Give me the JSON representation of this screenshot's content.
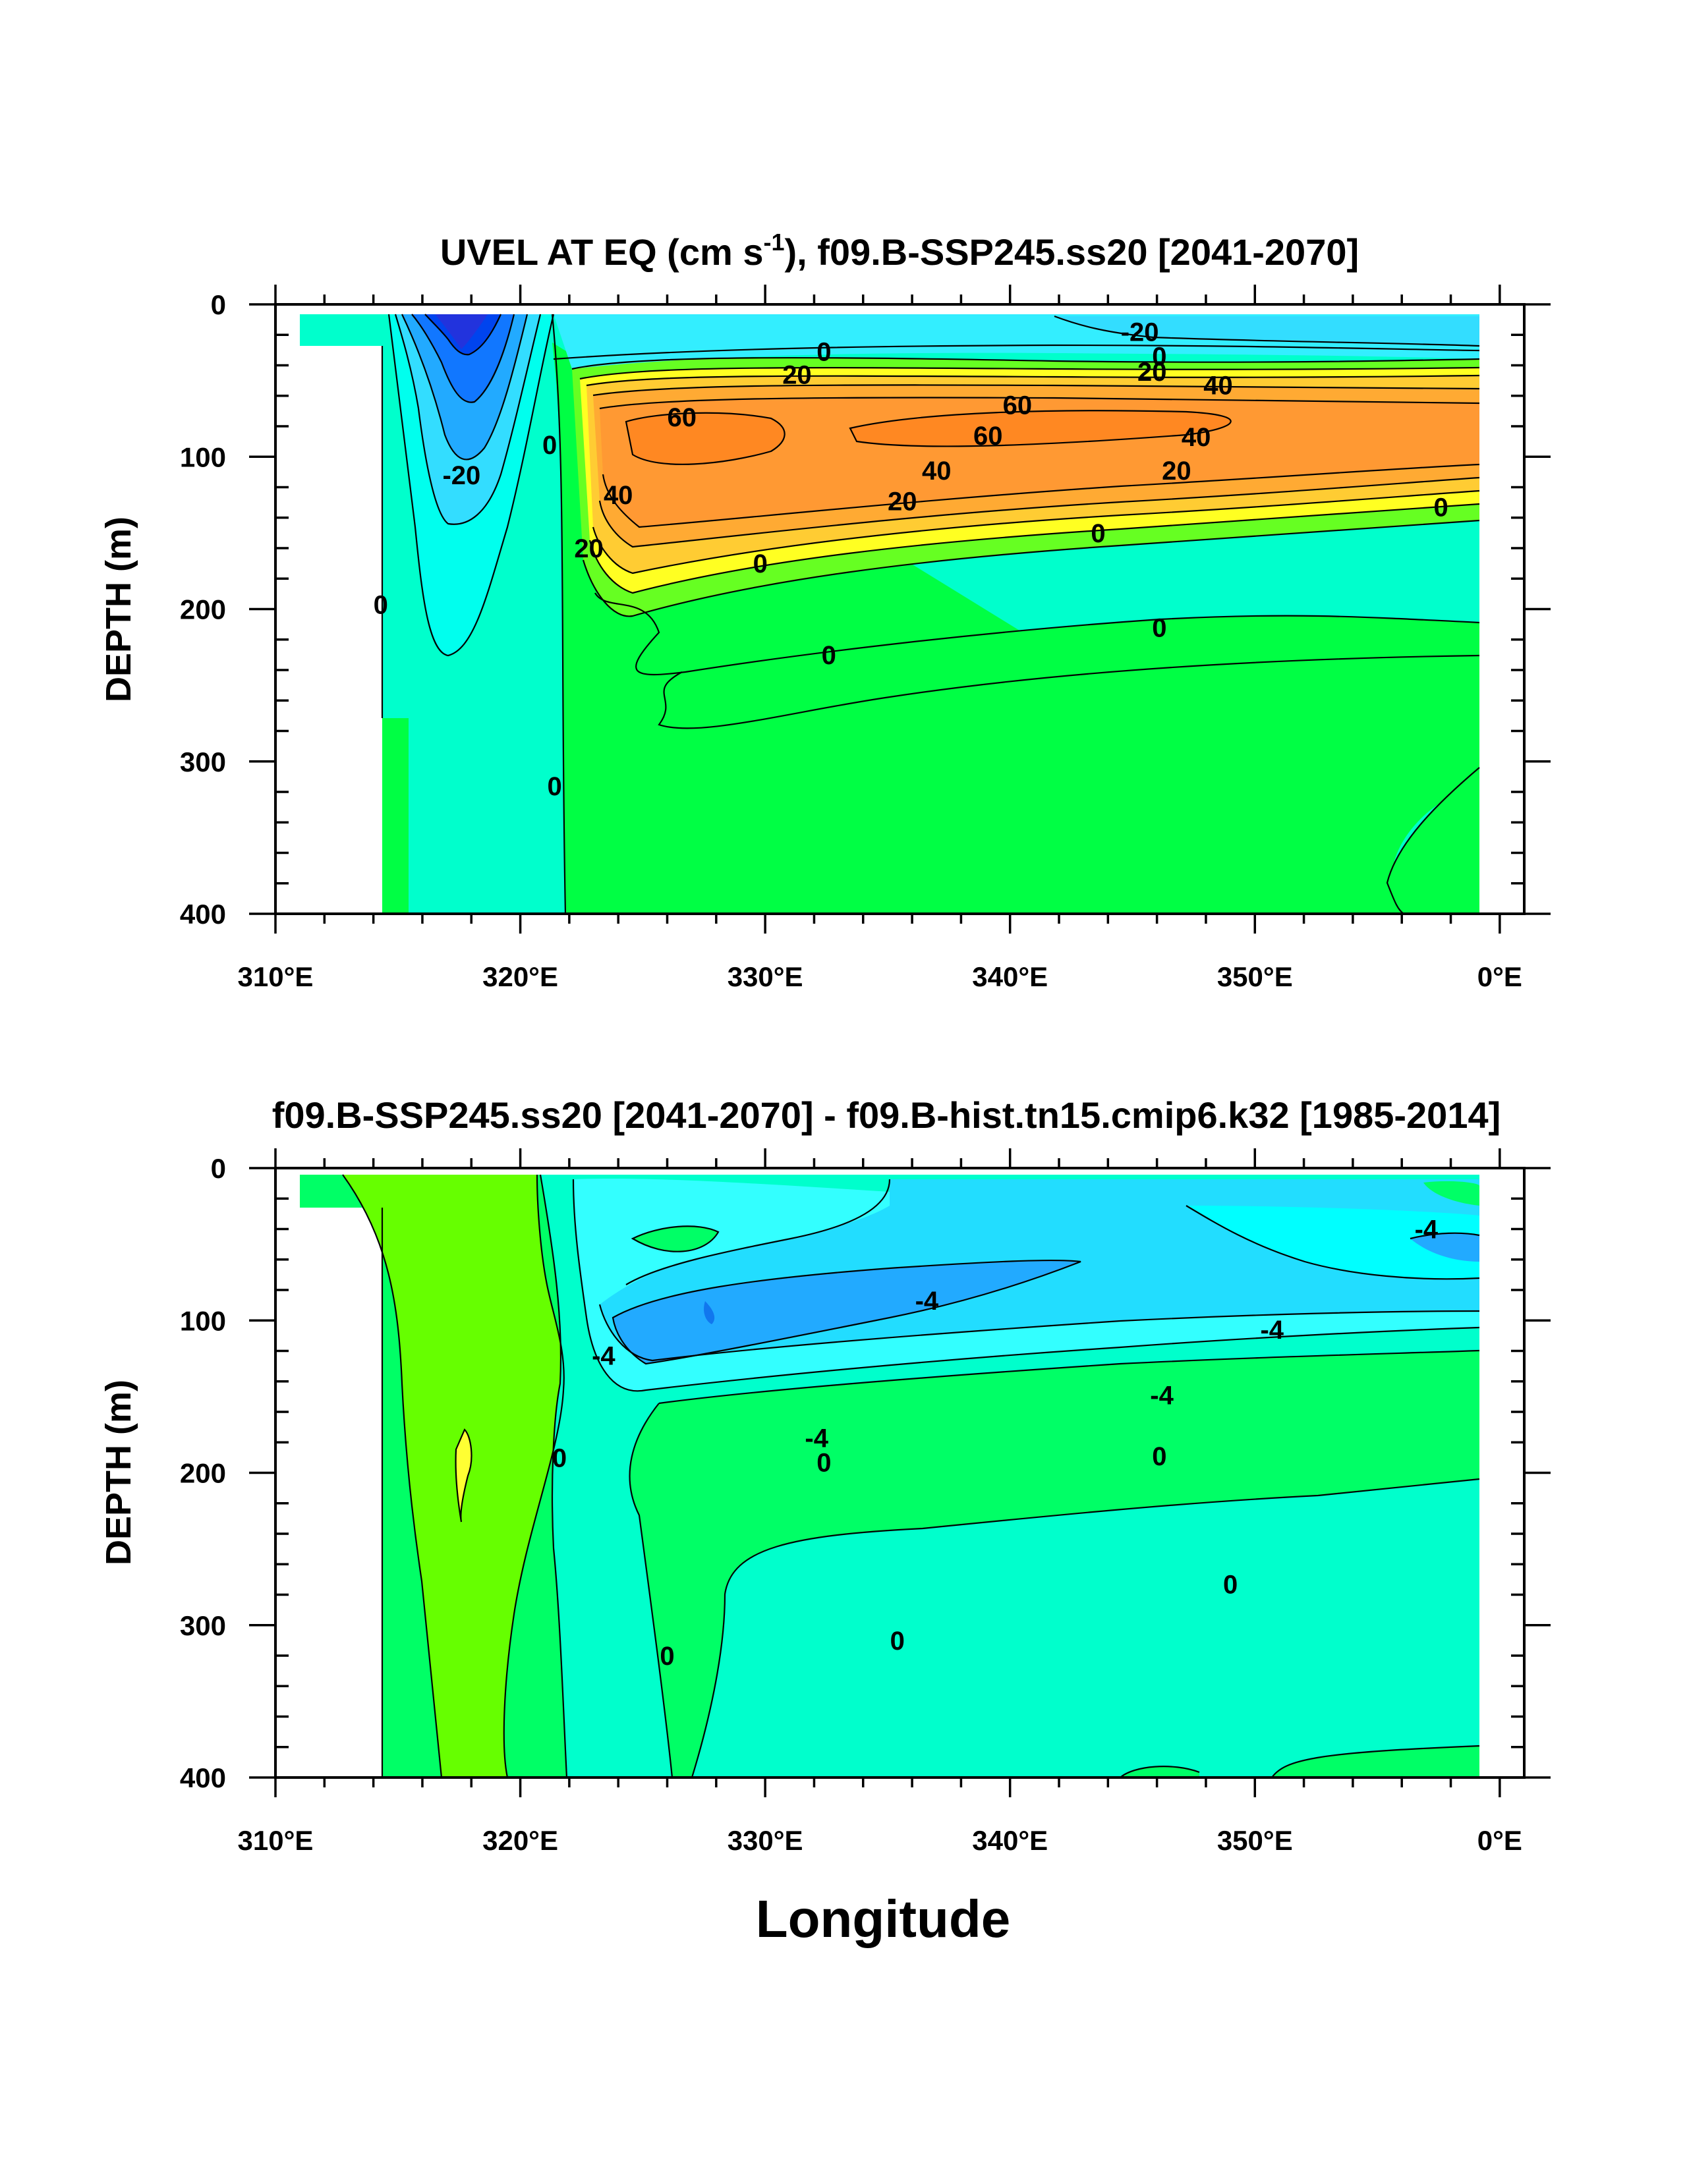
{
  "chart_data": [
    {
      "type": "contour",
      "title": "UVEL AT EQ (cm s-1), f09.B-SSP245.ss20 [2041-2070]",
      "title_parts": {
        "main": "UVEL AT EQ (cm s",
        "sup": "-1",
        "rest": "), f09.B-SSP245.ss20 [2041-2070]"
      },
      "xlabel": "",
      "ylabel": "DEPTH (m)",
      "x_ticks": [
        "310°E",
        "320°E",
        "330°E",
        "340°E",
        "350°E",
        "0°E"
      ],
      "x_tick_values": [
        310,
        320,
        330,
        340,
        350,
        360
      ],
      "y_ticks": [
        "0",
        "100",
        "200",
        "300",
        "400"
      ],
      "y_tick_values": [
        0,
        100,
        200,
        300,
        400
      ],
      "xlim": [
        310,
        361
      ],
      "ylim": [
        400,
        0
      ],
      "contour_labels": [
        {
          "x": 317.6,
          "y": 112,
          "label": "-20"
        },
        {
          "x": 314.3,
          "y": 197,
          "label": "0"
        },
        {
          "x": 321.2,
          "y": 92,
          "label": "0"
        },
        {
          "x": 324.0,
          "y": 125,
          "label": "40"
        },
        {
          "x": 322.8,
          "y": 160,
          "label": "20"
        },
        {
          "x": 326.6,
          "y": 74,
          "label": "60"
        },
        {
          "x": 332.4,
          "y": 31,
          "label": "0"
        },
        {
          "x": 331.3,
          "y": 46,
          "label": "20"
        },
        {
          "x": 345.3,
          "y": 18,
          "label": "-20"
        },
        {
          "x": 346.1,
          "y": 34,
          "label": "0"
        },
        {
          "x": 345.8,
          "y": 44,
          "label": "20"
        },
        {
          "x": 348.5,
          "y": 53,
          "label": "40"
        },
        {
          "x": 340.3,
          "y": 66,
          "label": "60"
        },
        {
          "x": 339.1,
          "y": 86,
          "label": "60"
        },
        {
          "x": 347.6,
          "y": 87,
          "label": "40"
        },
        {
          "x": 346.8,
          "y": 109,
          "label": "20"
        },
        {
          "x": 337.0,
          "y": 109,
          "label": "40"
        },
        {
          "x": 335.6,
          "y": 129,
          "label": "20"
        },
        {
          "x": 329.8,
          "y": 170,
          "label": "0"
        },
        {
          "x": 343.6,
          "y": 150,
          "label": "0"
        },
        {
          "x": 357.6,
          "y": 133,
          "label": "0"
        },
        {
          "x": 346.1,
          "y": 212,
          "label": "0"
        },
        {
          "x": 332.6,
          "y": 230,
          "label": "0"
        },
        {
          "x": 321.4,
          "y": 316,
          "label": "0"
        }
      ]
    },
    {
      "type": "contour",
      "title": "f09.B-SSP245.ss20 [2041-2070] - f09.B-hist.tn15.cmip6.k32 [1985-2014]",
      "xlabel": "Longitude",
      "ylabel": "DEPTH (m)",
      "x_ticks": [
        "310°E",
        "320°E",
        "330°E",
        "340°E",
        "350°E",
        "0°E"
      ],
      "x_tick_values": [
        310,
        320,
        330,
        340,
        350,
        360
      ],
      "y_ticks": [
        "0",
        "100",
        "200",
        "300",
        "400"
      ],
      "y_tick_values": [
        0,
        100,
        200,
        300,
        400
      ],
      "xlim": [
        310,
        361
      ],
      "ylim": [
        400,
        0
      ],
      "contour_labels": [
        {
          "x": 357.0,
          "y": 40,
          "label": "-4"
        },
        {
          "x": 336.6,
          "y": 87,
          "label": "-4"
        },
        {
          "x": 350.7,
          "y": 106,
          "label": "-4"
        },
        {
          "x": 323.4,
          "y": 123,
          "label": "-4"
        },
        {
          "x": 346.2,
          "y": 149,
          "label": "-4"
        },
        {
          "x": 332.1,
          "y": 177,
          "label": "-4"
        },
        {
          "x": 332.4,
          "y": 193,
          "label": "0"
        },
        {
          "x": 346.1,
          "y": 189,
          "label": "0"
        },
        {
          "x": 321.6,
          "y": 190,
          "label": "0"
        },
        {
          "x": 349.0,
          "y": 273,
          "label": "0"
        },
        {
          "x": 335.4,
          "y": 310,
          "label": "0"
        },
        {
          "x": 326.0,
          "y": 320,
          "label": "0"
        }
      ]
    }
  ]
}
